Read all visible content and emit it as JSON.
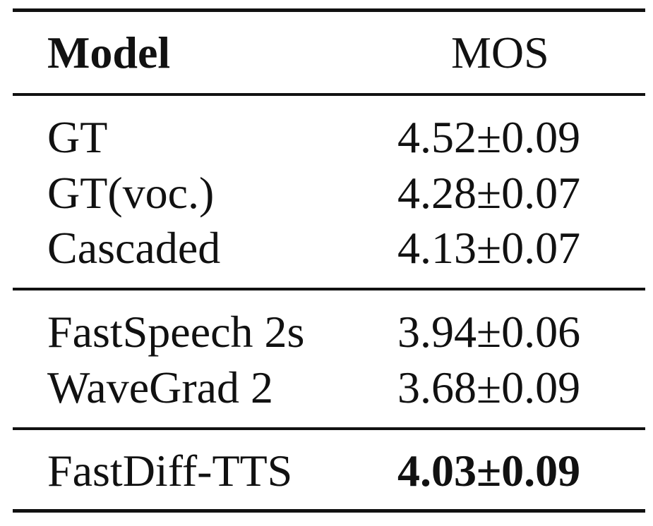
{
  "table": {
    "headers": {
      "model": "Model",
      "mos": "MOS"
    },
    "groups": [
      {
        "rows": [
          {
            "model": "GT",
            "mos": "4.52±0.09"
          },
          {
            "model": "GT(voc.)",
            "mos": "4.28±0.07"
          },
          {
            "model": "Cascaded",
            "mos": "4.13±0.07"
          }
        ]
      },
      {
        "rows": [
          {
            "model": "FastSpeech 2s",
            "mos": "3.94±0.06"
          },
          {
            "model": "WaveGrad 2",
            "mos": "3.68±0.09"
          }
        ]
      },
      {
        "rows": [
          {
            "model": "FastDiff-TTS",
            "mos": "4.03±0.09"
          }
        ]
      }
    ]
  }
}
